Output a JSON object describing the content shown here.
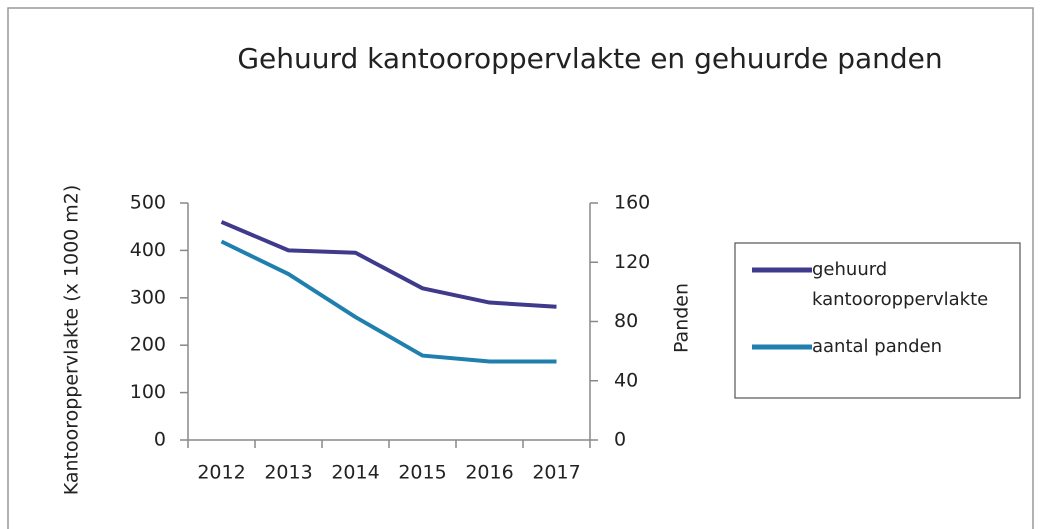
{
  "chart_data": {
    "type": "line",
    "title": "Gehuurd kantooroppervlakte en gehuurde panden",
    "ylabel": "Kantooroppervlakte   (x 1000 m2)",
    "y2label": "Panden",
    "categories": [
      "2012",
      "2013",
      "2014",
      "2015",
      "2016",
      "2017"
    ],
    "series": [
      {
        "name": "gehuurd kantooroppervlakte",
        "color": "#3f3a8c",
        "values": [
          460,
          400,
          395,
          320,
          290,
          281
        ]
      },
      {
        "name": "aantal panden",
        "color": "#1f7fae",
        "axis": "y2",
        "values": [
          134,
          112,
          83,
          57,
          53,
          53
        ]
      }
    ],
    "ylim": [
      0,
      500
    ],
    "yticks": [
      0,
      100,
      200,
      300,
      400,
      500
    ],
    "y2lim": [
      0,
      160
    ],
    "y2ticks": [
      0,
      40,
      80,
      120,
      160
    ],
    "grid": false,
    "legend": "right"
  }
}
